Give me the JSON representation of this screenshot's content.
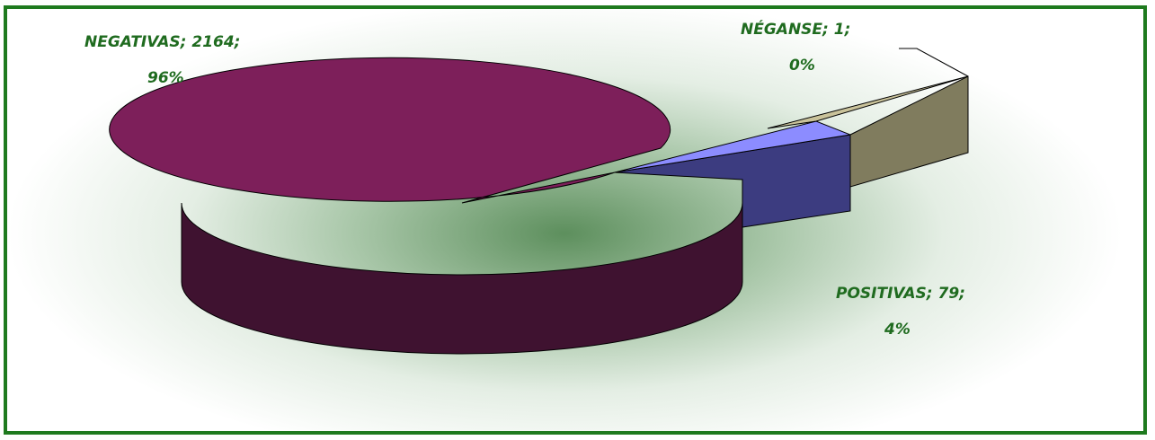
{
  "chart_data": {
    "type": "pie",
    "style": "3d-exploded",
    "title": "",
    "slices": [
      {
        "name": "NEGATIVAS",
        "value": 2164,
        "percent": "96%",
        "color": "#7d1f5a",
        "side_color": "#3f1230"
      },
      {
        "name": "POSITIVAS",
        "value": 79,
        "percent": "4%",
        "color": "#8c8cff",
        "side_color": "#3c3c80"
      },
      {
        "name": "NÉGANSE",
        "value": 1,
        "percent": "0%",
        "color": "#c9c29a",
        "side_color": "#807c5e"
      }
    ],
    "labels": [
      {
        "line1": "NEGATIVAS; 2164;",
        "line2": "96%"
      },
      {
        "line1": "POSITIVAS; 79;",
        "line2": "4%"
      },
      {
        "line1": "NÉGANSE; 1;",
        "line2": "0%"
      }
    ],
    "frame_color": "#1e7a1e",
    "label_color": "#1f6b1f"
  }
}
